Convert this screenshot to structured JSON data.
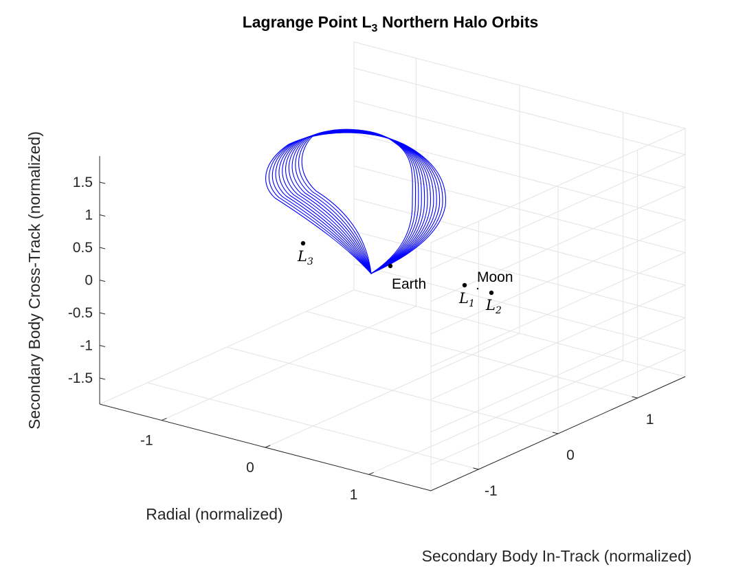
{
  "chart_data": {
    "type": "line3d",
    "title": "Lagrange Point L",
    "title_sub": "3",
    "title_rest": " Northern Halo Orbits",
    "xlabel": "Radial (normalized)",
    "ylabel": "Secondary Body In-Track (normalized)",
    "zlabel": "Secondary Body Cross-Track (normalized)",
    "xlim": [
      -1.6,
      1.6
    ],
    "ylim": [
      -1.6,
      1.6
    ],
    "zlim": [
      -1.9,
      1.9
    ],
    "x_ticks": [
      -1,
      0,
      1
    ],
    "x_tick_labels": [
      "-1",
      "0",
      "1"
    ],
    "y_ticks": [
      -1,
      0,
      1
    ],
    "y_tick_labels": [
      "-1",
      "0",
      "1"
    ],
    "z_ticks": [
      -1.5,
      -1,
      -0.5,
      0,
      0.5,
      1,
      1.5
    ],
    "z_tick_labels": [
      "-1.5",
      "-1",
      "-0.5",
      "0",
      "0.5",
      "1",
      "1.5"
    ],
    "grid": true,
    "series_color": "#0000ff",
    "orbit_family_count": 12,
    "points": [
      {
        "name": "Earth",
        "label": "Earth",
        "x": -0.0121,
        "y": 0,
        "z": 0
      },
      {
        "name": "Moon",
        "label": "Moon",
        "x": 0.9879,
        "y": 0,
        "z": 0
      },
      {
        "name": "L1",
        "label": "L",
        "sub": "1",
        "x": 0.8369,
        "y": 0,
        "z": 0
      },
      {
        "name": "L2",
        "label": "L",
        "sub": "2",
        "x": 1.1557,
        "y": 0,
        "z": 0
      },
      {
        "name": "L3",
        "label": "L",
        "sub": "3",
        "x": -1.0051,
        "y": 0,
        "z": 0
      }
    ]
  }
}
